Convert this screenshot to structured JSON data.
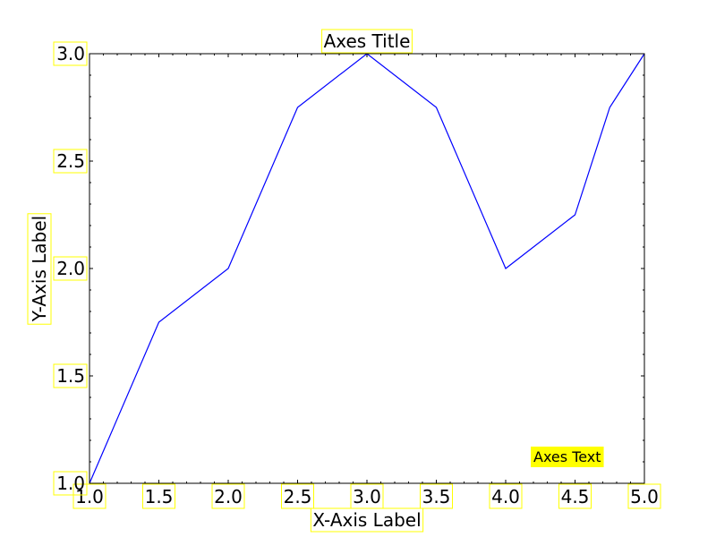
{
  "chart_data": {
    "type": "line",
    "title": "Axes Title",
    "xlabel": "X-Axis Label",
    "ylabel": "Y-Axis Label",
    "annotation": "Axes Text",
    "xlim": [
      1.0,
      5.0
    ],
    "ylim": [
      1.0,
      3.0
    ],
    "xticks": [
      "1.0",
      "1.5",
      "2.0",
      "2.5",
      "3.0",
      "3.5",
      "4.0",
      "4.5",
      "5.0"
    ],
    "yticks": [
      "1.0",
      "1.5",
      "2.0",
      "2.5",
      "3.0"
    ],
    "grid": false,
    "series": [
      {
        "color": "#0000ff",
        "x": [
          1.0,
          1.5,
          2.0,
          2.5,
          3.0,
          3.5,
          4.0,
          4.5,
          4.75,
          5.0
        ],
        "y": [
          1.0,
          1.75,
          2.0,
          2.75,
          3.0,
          2.75,
          2.0,
          2.25,
          2.75,
          3.0
        ]
      }
    ],
    "label_box_color": "#ffff00"
  }
}
